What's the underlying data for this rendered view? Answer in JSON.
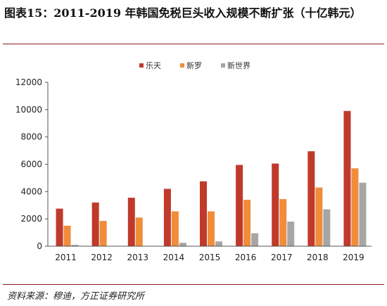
{
  "title": "图表15：2011-2019 年韩国免税巨头收入规模不断扩张（十亿韩元）",
  "source": "资料来源：穆迪，方正证券研究所",
  "chart_data": {
    "type": "bar",
    "categories": [
      "2011",
      "2012",
      "2013",
      "2014",
      "2015",
      "2016",
      "2017",
      "2018",
      "2019"
    ],
    "series": [
      {
        "name": "乐天",
        "color": "#c0392b",
        "values": [
          2750,
          3200,
          3550,
          4200,
          4750,
          5950,
          6050,
          6950,
          9900
        ]
      },
      {
        "name": "新罗",
        "color": "#f08c3a",
        "values": [
          1500,
          1850,
          2100,
          2550,
          2550,
          3400,
          3450,
          4300,
          5700
        ]
      },
      {
        "name": "新世界",
        "color": "#a6a6a6",
        "values": [
          100,
          0,
          0,
          250,
          350,
          950,
          1800,
          2700,
          4650
        ]
      }
    ],
    "yticks": [
      "0",
      "2000",
      "4000",
      "6000",
      "8000",
      "10000",
      "12000"
    ],
    "ylim": [
      0,
      12000
    ],
    "legend_position": "top-center",
    "grid": false
  }
}
